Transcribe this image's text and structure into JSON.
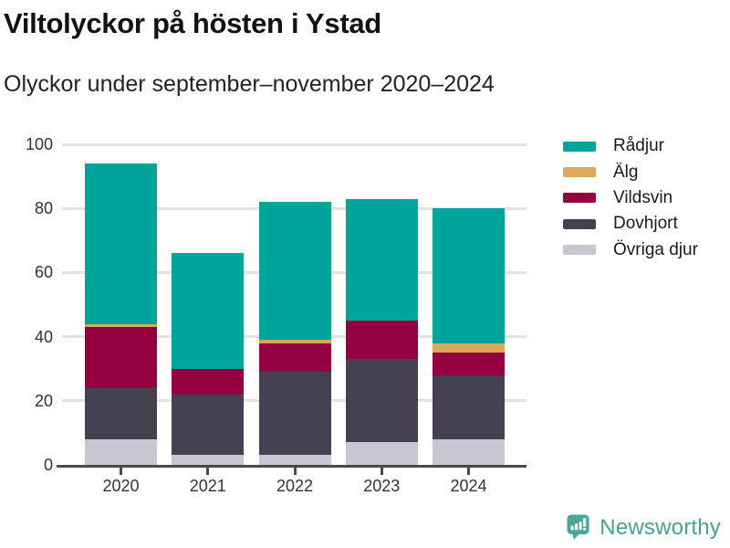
{
  "header": {
    "title": "Viltolyckor på hösten i Ystad",
    "subtitle": "Olyckor under september–november 2020–2024"
  },
  "chart_data": {
    "type": "bar",
    "stacked": true,
    "title": "Viltolyckor på hösten i Ystad",
    "subtitle": "Olyckor under september–november 2020–2024",
    "categories": [
      "2020",
      "2021",
      "2022",
      "2023",
      "2024"
    ],
    "series": [
      {
        "name": "Rådjur",
        "color": "#00a49a",
        "values": [
          50,
          36,
          43,
          38,
          42
        ]
      },
      {
        "name": "Älg",
        "color": "#d9a95c",
        "values": [
          1,
          0,
          1,
          0,
          3
        ]
      },
      {
        "name": "Vildsvin",
        "color": "#950040",
        "values": [
          19,
          8,
          9,
          12,
          7
        ]
      },
      {
        "name": "Dovhjort",
        "color": "#454153",
        "values": [
          16,
          19,
          26,
          26,
          20
        ]
      },
      {
        "name": "Övriga djur",
        "color": "#c8c6d1",
        "values": [
          8,
          3,
          3,
          7,
          8
        ]
      }
    ],
    "stack_order_bottom_to_top": [
      "Övriga djur",
      "Dovhjort",
      "Vildsvin",
      "Älg",
      "Rådjur"
    ],
    "totals": [
      94,
      66,
      82,
      83,
      80
    ],
    "xlabel": "",
    "ylabel": "",
    "ylim": [
      0,
      100
    ],
    "yticks": [
      0,
      20,
      40,
      60,
      80,
      100
    ],
    "grid": true,
    "legend_position": "right"
  },
  "branding": {
    "logo_text": "Newsworthy",
    "logo_icon": "bar-chart-speech-bubble-icon",
    "logo_color": "#48a294"
  },
  "colors": {
    "background": "#ffffff",
    "gridline": "#e2e2e2",
    "axis": "#4a4a4a",
    "axis_text": "#333333",
    "title_text": "#121212",
    "legend_text": "#1a1a1a"
  }
}
